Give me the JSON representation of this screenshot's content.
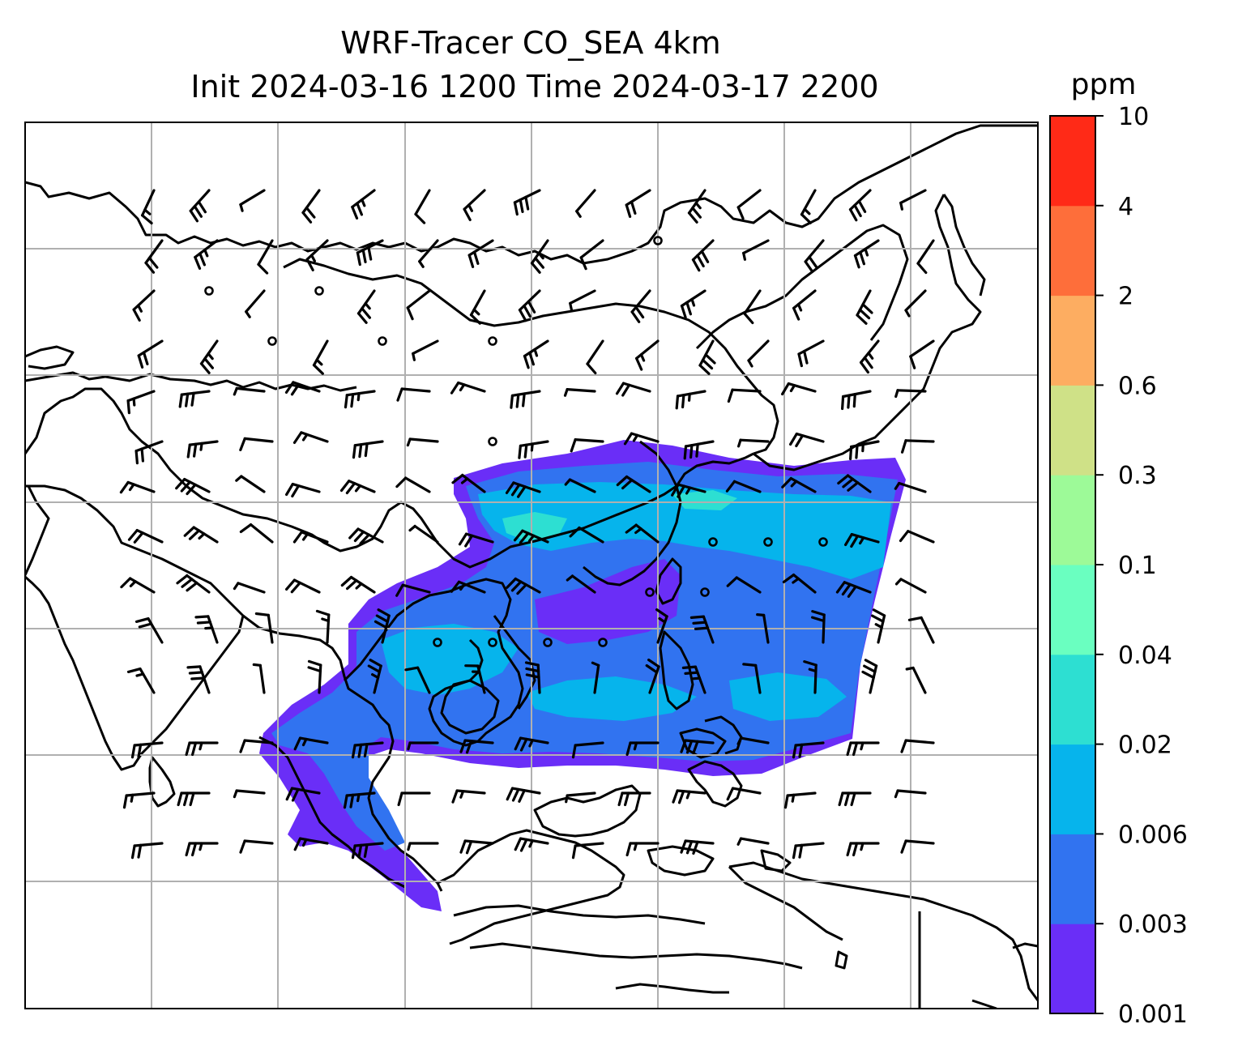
{
  "figure": {
    "title_line1": "WRF-Tracer CO_SEA 4km",
    "title_line2": "Init 2024-03-16 1200 Time 2024-03-17 2200",
    "colorbar": {
      "unit": "ppm",
      "levels": [
        "0.001",
        "0.003",
        "0.006",
        "0.02",
        "0.04",
        "0.1",
        "0.3",
        "0.6",
        "2",
        "4",
        "10"
      ],
      "colors": [
        "#6a2ef7",
        "#3173f0",
        "#06b4ec",
        "#2ddfd2",
        "#6affc0",
        "#9dfa98",
        "#cfe187",
        "#fdad61",
        "#fe6e3a",
        "#ff2a17"
      ]
    },
    "map": {
      "variable": "CO tracer",
      "grid": "on",
      "wind_barbs": "on",
      "coastlines": "on"
    }
  }
}
